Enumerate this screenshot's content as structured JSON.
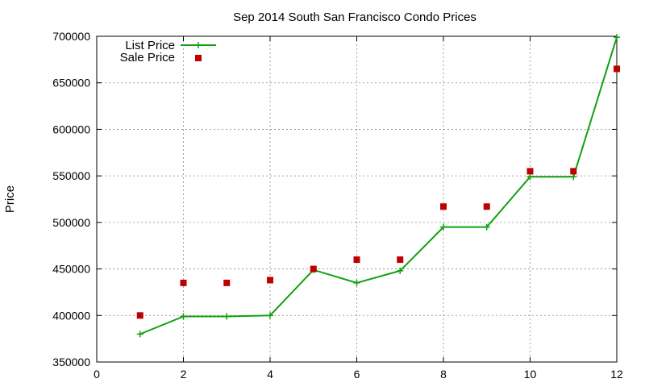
{
  "chart_data": {
    "type": "line",
    "title": "Sep 2014 South San Francisco Condo Prices",
    "xlabel": "",
    "ylabel": "Price",
    "xlim": [
      0,
      12
    ],
    "ylim": [
      350000,
      700000
    ],
    "x_ticks": [
      0,
      2,
      4,
      6,
      8,
      10,
      12
    ],
    "y_ticks": [
      350000,
      400000,
      450000,
      500000,
      550000,
      600000,
      650000,
      700000
    ],
    "grid": true,
    "legend_position": "top-left",
    "series": [
      {
        "name": "List Price",
        "style": "line+cross",
        "color": "#11a011",
        "x": [
          1,
          2,
          3,
          4,
          5,
          6,
          7,
          8,
          9,
          10,
          11,
          12
        ],
        "y": [
          380000,
          399000,
          399000,
          400000,
          449000,
          435000,
          448000,
          495000,
          495000,
          549000,
          549000,
          699000
        ]
      },
      {
        "name": "Sale Price",
        "style": "square",
        "color": "#c00000",
        "x": [
          1,
          2,
          3,
          4,
          5,
          6,
          7,
          8,
          9,
          10,
          11,
          12
        ],
        "y": [
          400000,
          435000,
          435000,
          438000,
          450000,
          460000,
          460000,
          517000,
          517000,
          555000,
          555000,
          665000
        ]
      }
    ]
  }
}
